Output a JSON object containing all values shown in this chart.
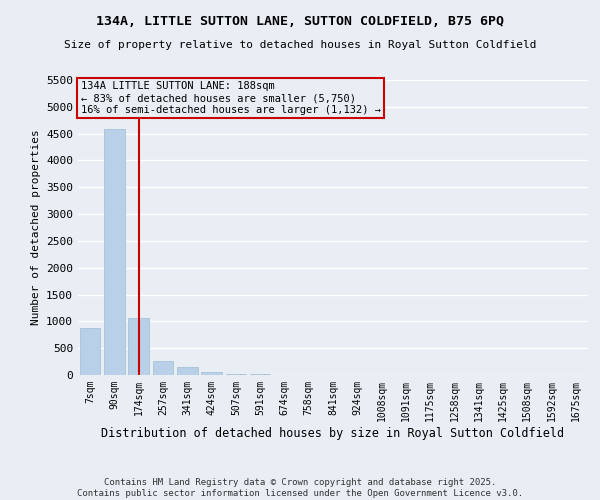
{
  "title": "134A, LITTLE SUTTON LANE, SUTTON COLDFIELD, B75 6PQ",
  "subtitle": "Size of property relative to detached houses in Royal Sutton Coldfield",
  "xlabel": "Distribution of detached houses by size in Royal Sutton Coldfield",
  "ylabel": "Number of detached properties",
  "categories": [
    "7sqm",
    "90sqm",
    "174sqm",
    "257sqm",
    "341sqm",
    "424sqm",
    "507sqm",
    "591sqm",
    "674sqm",
    "758sqm",
    "841sqm",
    "924sqm",
    "1008sqm",
    "1091sqm",
    "1175sqm",
    "1258sqm",
    "1341sqm",
    "1425sqm",
    "1508sqm",
    "1592sqm",
    "1675sqm"
  ],
  "values": [
    870,
    4580,
    1060,
    270,
    140,
    60,
    20,
    10,
    5,
    3,
    2,
    2,
    1,
    1,
    1,
    1,
    1,
    1,
    0,
    0,
    0
  ],
  "bar_color": "#b8d0e8",
  "bar_edge_color": "#9dbdd4",
  "property_index": 2,
  "property_label": "134A LITTLE SUTTON LANE: 188sqm",
  "annotation_line1": "← 83% of detached houses are smaller (5,750)",
  "annotation_line2": "16% of semi-detached houses are larger (1,132) →",
  "vline_color": "#cc0000",
  "annotation_box_color": "#cc0000",
  "background_color": "#e8eef4",
  "grid_color": "#ffffff",
  "ylim": [
    0,
    5500
  ],
  "yticks": [
    0,
    500,
    1000,
    1500,
    2000,
    2500,
    3000,
    3500,
    4000,
    4500,
    5000,
    5500
  ],
  "footer_line1": "Contains HM Land Registry data © Crown copyright and database right 2025.",
  "footer_line2": "Contains public sector information licensed under the Open Government Licence v3.0."
}
